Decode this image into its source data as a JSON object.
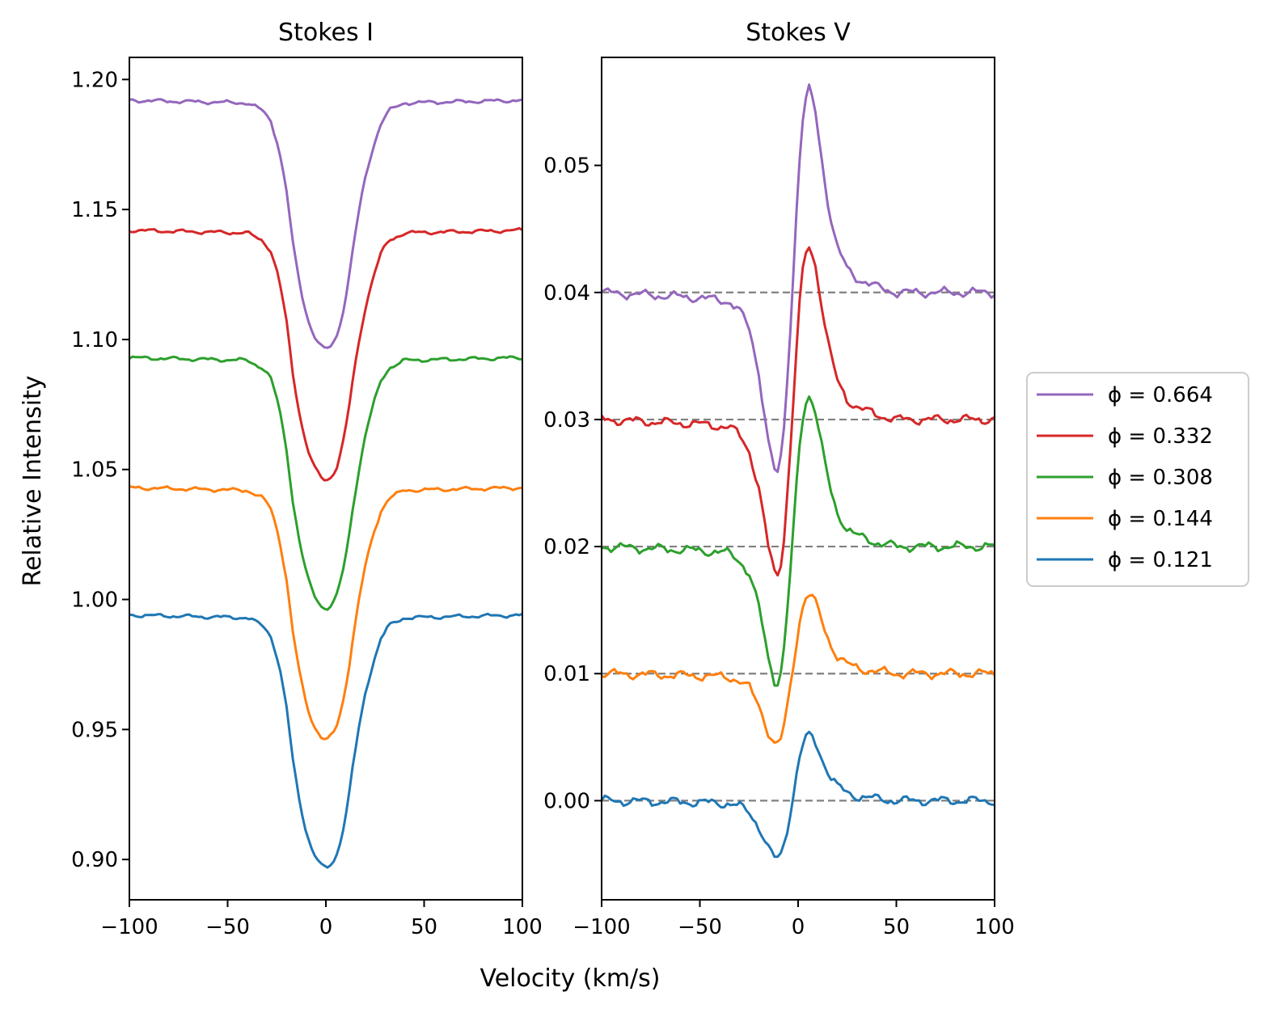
{
  "chart_data": [
    {
      "type": "line",
      "title": "Stokes I",
      "xlabel": "",
      "ylabel": "Relative Intensity",
      "xlim": [
        -100,
        100
      ],
      "ylim": [
        0.8845,
        1.2085
      ],
      "xticks": [
        -100,
        -50,
        0,
        50,
        100
      ],
      "xtick_labels": [
        "−100",
        "−50",
        "0",
        "50",
        "100"
      ],
      "yticks": [
        0.9,
        0.95,
        1.0,
        1.05,
        1.1,
        1.15,
        1.2
      ],
      "ytick_labels": [
        "0.90",
        "0.95",
        "1.00",
        "1.05",
        "1.10",
        "1.15",
        "1.20"
      ],
      "profile": {
        "x": [
          -100,
          -40,
          -32,
          -28,
          -24,
          -20,
          -17,
          -14,
          -11,
          -8,
          -5,
          -2,
          0,
          2,
          5,
          8,
          11,
          14,
          17,
          20,
          24,
          28,
          32,
          40,
          100
        ],
        "depth": [
          0,
          0.001,
          0.004,
          0.008,
          0.018,
          0.035,
          0.054,
          0.068,
          0.079,
          0.087,
          0.092,
          0.095,
          0.096,
          0.095,
          0.092,
          0.084,
          0.072,
          0.056,
          0.042,
          0.03,
          0.018,
          0.009,
          0.004,
          0.001,
          0
        ]
      },
      "series": [
        {
          "name": "ϕ = 0.664",
          "offset": 1.192,
          "color": "#9467bd"
        },
        {
          "name": "ϕ = 0.332",
          "offset": 1.142,
          "color": "#d62728"
        },
        {
          "name": "ϕ = 0.308",
          "offset": 1.093,
          "color": "#2ca02c"
        },
        {
          "name": "ϕ = 0.144",
          "offset": 1.043,
          "color": "#ff7f0e"
        },
        {
          "name": "ϕ = 0.121",
          "offset": 0.994,
          "color": "#1f77b4"
        }
      ]
    },
    {
      "type": "line",
      "title": "Stokes V",
      "xlabel": "",
      "ylabel": "",
      "xlim": [
        -100,
        100
      ],
      "ylim": [
        -0.0078,
        0.0585
      ],
      "xticks": [
        -100,
        -50,
        0,
        50,
        100
      ],
      "xtick_labels": [
        "−100",
        "−50",
        "0",
        "50",
        "100"
      ],
      "yticks": [
        0.0,
        0.01,
        0.02,
        0.03,
        0.04,
        0.05
      ],
      "ytick_labels": [
        "0.00",
        "0.01",
        "0.02",
        "0.03",
        "0.04",
        "0.05"
      ],
      "reference_lines": [
        0.0,
        0.01,
        0.02,
        0.03,
        0.04
      ],
      "profile": {
        "x": [
          -100,
          -50,
          -35,
          -30,
          -25,
          -20,
          -15,
          -11,
          -8,
          -5,
          -2,
          0,
          3,
          6,
          9,
          12,
          16,
          20,
          25,
          30,
          40,
          50,
          100
        ],
        "shape": [
          0,
          -0.0003,
          -0.0005,
          -0.001,
          -0.002,
          -0.0045,
          -0.0085,
          -0.0105,
          -0.009,
          -0.004,
          0.002,
          0.0065,
          0.0105,
          0.0115,
          0.01,
          0.0075,
          0.0045,
          0.0025,
          0.0013,
          0.0008,
          0.0003,
          0,
          0
        ]
      },
      "series": [
        {
          "name": "ϕ = 0.664",
          "offset": 0.04,
          "amplitude": 1.4,
          "color": "#9467bd"
        },
        {
          "name": "ϕ = 0.332",
          "offset": 0.03,
          "amplitude": 1.2,
          "color": "#d62728"
        },
        {
          "name": "ϕ = 0.308",
          "offset": 0.02,
          "amplitude": 1.05,
          "color": "#2ca02c"
        },
        {
          "name": "ϕ = 0.144",
          "offset": 0.01,
          "amplitude": 0.55,
          "color": "#ff7f0e"
        },
        {
          "name": "ϕ = 0.121",
          "offset": 0.0,
          "amplitude": 0.45,
          "color": "#1f77b4"
        }
      ]
    }
  ],
  "shared": {
    "xlabel": "Velocity (km/s)",
    "legend": {
      "position": "right",
      "entries": [
        {
          "label": "ϕ = 0.664",
          "color": "#9467bd"
        },
        {
          "label": "ϕ = 0.332",
          "color": "#d62728"
        },
        {
          "label": "ϕ = 0.308",
          "color": "#2ca02c"
        },
        {
          "label": "ϕ = 0.144",
          "color": "#ff7f0e"
        },
        {
          "label": "ϕ = 0.121",
          "color": "#1f77b4"
        }
      ]
    },
    "reference_line_color": "#808080"
  }
}
